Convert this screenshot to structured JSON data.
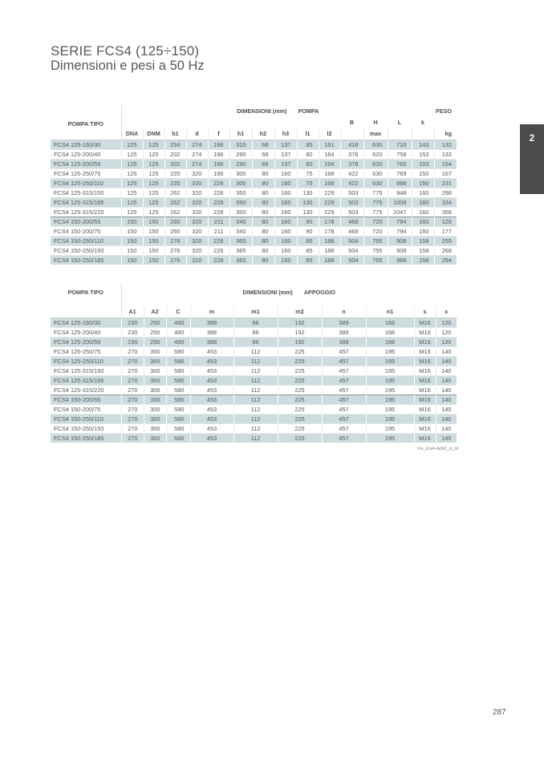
{
  "page": {
    "title_line1": "SERIE FCS4 (125÷150)",
    "title_line2": "Dimensioni e pesi a 50 Hz",
    "section_tab": "2",
    "page_number": "287",
    "caption": "Inv_fcs4-4p50_d_td"
  },
  "colors": {
    "row_highlight": "#ccdcdf",
    "tab_background": "#4b4b4d",
    "text": "#55575a"
  },
  "table_pompa": {
    "title_col": "POMPA TIPO",
    "dim_label": "DIMENSIONI (mm)",
    "group_label": "POMPA",
    "peso_label": "PESO",
    "mid_labels": [
      "B",
      "H",
      "L",
      "k"
    ],
    "columns": [
      "DNA",
      "DNM",
      "b1",
      "d",
      "f",
      "h1",
      "h2",
      "h3",
      "l1",
      "l2"
    ],
    "max_label": "max",
    "kg_label": "kg",
    "rows": [
      {
        "name": "FCS4 125-160/30",
        "values": [
          125,
          125,
          234,
          274,
          196,
          315,
          68,
          137,
          85,
          161,
          418,
          630,
          710,
          143,
          132
        ]
      },
      {
        "name": "FCS4 125-200/40",
        "values": [
          125,
          125,
          202,
          274,
          196,
          290,
          68,
          137,
          80,
          164,
          378,
          620,
          758,
          153,
          133
        ]
      },
      {
        "name": "FCS4 125-200/55",
        "values": [
          125,
          125,
          202,
          274,
          196,
          290,
          68,
          137,
          80,
          164,
          378,
          620,
          765,
          153,
          154
        ]
      },
      {
        "name": "FCS4 125-250/75",
        "values": [
          125,
          125,
          220,
          320,
          196,
          300,
          80,
          160,
          75,
          168,
          422,
          630,
          769,
          150,
          167
        ]
      },
      {
        "name": "FCS4 125-250/110",
        "values": [
          125,
          125,
          220,
          320,
          226,
          300,
          80,
          160,
          75,
          168,
          422,
          630,
          888,
          150,
          231
        ]
      },
      {
        "name": "FCS4 125-315/150",
        "values": [
          125,
          125,
          262,
          320,
          226,
          350,
          80,
          160,
          130,
          229,
          503,
          775,
          948,
          160,
          298
        ]
      },
      {
        "name": "FCS4 125-315/185",
        "values": [
          125,
          125,
          262,
          320,
          226,
          350,
          80,
          160,
          130,
          229,
          503,
          775,
          1009,
          160,
          334
        ]
      },
      {
        "name": "FCS4 125-315/220",
        "values": [
          125,
          125,
          262,
          320,
          226,
          350,
          80,
          160,
          130,
          229,
          503,
          775,
          1047,
          160,
          356
        ]
      },
      {
        "name": "FCS4 150-200/55",
        "values": [
          150,
          150,
          260,
          320,
          211,
          340,
          80,
          160,
          90,
          178,
          468,
          720,
          794,
          160,
          126
        ],
        "sep_before": true
      },
      {
        "name": "FCS4 150-200/75",
        "values": [
          150,
          150,
          260,
          320,
          211,
          340,
          80,
          160,
          90,
          178,
          468,
          720,
          794,
          160,
          177
        ]
      },
      {
        "name": "FCS4 150-250/110",
        "values": [
          150,
          150,
          276,
          320,
          226,
          365,
          80,
          160,
          85,
          188,
          504,
          755,
          908,
          158,
          255
        ]
      },
      {
        "name": "FCS4 150-250/150",
        "values": [
          150,
          150,
          276,
          320,
          226,
          365,
          80,
          160,
          85,
          188,
          504,
          755,
          908,
          158,
          268
        ]
      },
      {
        "name": "FCS4 150-250/185",
        "values": [
          150,
          150,
          276,
          320,
          226,
          365,
          80,
          160,
          85,
          188,
          504,
          755,
          968,
          158,
          294
        ]
      }
    ]
  },
  "table_appoggio": {
    "title_col": "POMPA TIPO",
    "dim_label": "DIMENSIONI (mm)",
    "group_label": "APPOGGIO",
    "columns": [
      "A1",
      "A2",
      "C",
      "m",
      "m1",
      "m2",
      "n",
      "n1",
      "s",
      "x"
    ],
    "rows": [
      {
        "name": "FCS4 125-160/30",
        "values": [
          230,
          250,
          480,
          388,
          96,
          192,
          389,
          166,
          "M16",
          120
        ]
      },
      {
        "name": "FCS4 125-200/40",
        "values": [
          230,
          250,
          480,
          388,
          96,
          192,
          389,
          166,
          "M16",
          120
        ]
      },
      {
        "name": "FCS4 125-200/55",
        "values": [
          230,
          250,
          480,
          388,
          96,
          192,
          389,
          166,
          "M16",
          120
        ]
      },
      {
        "name": "FCS4 125-250/75",
        "values": [
          270,
          300,
          580,
          453,
          112,
          225,
          457,
          195,
          "M16",
          140
        ]
      },
      {
        "name": "FCS4 125-250/110",
        "values": [
          270,
          300,
          580,
          453,
          112,
          225,
          457,
          195,
          "M16",
          140
        ]
      },
      {
        "name": "FCS4 125-315/150",
        "values": [
          270,
          300,
          580,
          453,
          112,
          225,
          457,
          195,
          "M16",
          140
        ]
      },
      {
        "name": "FCS4 125-315/185",
        "values": [
          270,
          300,
          580,
          453,
          112,
          225,
          457,
          195,
          "M16",
          140
        ]
      },
      {
        "name": "FCS4 125-315/220",
        "values": [
          270,
          300,
          580,
          453,
          112,
          225,
          457,
          195,
          "M16",
          140
        ]
      },
      {
        "name": "FCS4 150-200/55",
        "values": [
          270,
          300,
          580,
          453,
          112,
          225,
          457,
          195,
          "M16",
          140
        ],
        "sep_before": true
      },
      {
        "name": "FCS4 150-200/75",
        "values": [
          270,
          300,
          580,
          453,
          112,
          225,
          457,
          195,
          "M16",
          140
        ]
      },
      {
        "name": "FCS4 150-250/110",
        "values": [
          270,
          300,
          580,
          453,
          112,
          225,
          457,
          195,
          "M16",
          140
        ]
      },
      {
        "name": "FCS4 150-250/150",
        "values": [
          270,
          300,
          580,
          453,
          112,
          225,
          457,
          195,
          "M16",
          140
        ]
      },
      {
        "name": "FCS4 150-250/185",
        "values": [
          270,
          300,
          580,
          453,
          112,
          225,
          457,
          195,
          "M16",
          140
        ]
      }
    ]
  }
}
